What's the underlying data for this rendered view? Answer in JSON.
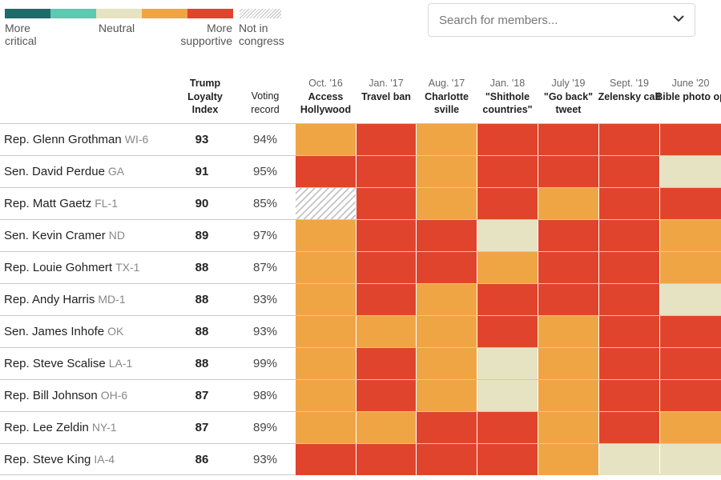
{
  "colors": {
    "more_critical": "#1d6b6b",
    "critical": "#5cc9b0",
    "neutral": "#e6e3c3",
    "supportive": "#f0a545",
    "more_supportive": "#e0442c",
    "not_in_congress": "hatch"
  },
  "legend": {
    "more_critical": "More critical",
    "neutral": "Neutral",
    "more_supportive": "More supportive",
    "not_in_congress": "Not in congress"
  },
  "search": {
    "placeholder": "Search for members...",
    "icon": "chevron-down-icon"
  },
  "columns": {
    "index": "Trump Loyalty Index",
    "voting": "Voting record",
    "events": [
      {
        "date": "Oct. '16",
        "label": "Access Hollywood"
      },
      {
        "date": "Jan. '17",
        "label": "Travel ban"
      },
      {
        "date": "Aug. '17",
        "label": "Charlotte sville"
      },
      {
        "date": "Jan. '18",
        "label": "\"Shithole countries\""
      },
      {
        "date": "July '19",
        "label": "\"Go back\" tweet"
      },
      {
        "date": "Sept. '19",
        "label": "Zelensky call"
      },
      {
        "date": "June '20",
        "label": "Bible photo op"
      }
    ]
  },
  "members": [
    {
      "name": "Rep. Glenn Grothman",
      "district": "WI-6",
      "index": "93",
      "voting": "94%",
      "ratings": [
        "supportive",
        "more_supportive",
        "supportive",
        "more_supportive",
        "more_supportive",
        "more_supportive",
        "more_supportive"
      ]
    },
    {
      "name": "Sen. David Perdue",
      "district": "GA",
      "index": "91",
      "voting": "95%",
      "ratings": [
        "more_supportive",
        "more_supportive",
        "supportive",
        "more_supportive",
        "more_supportive",
        "more_supportive",
        "neutral"
      ]
    },
    {
      "name": "Rep. Matt Gaetz",
      "district": "FL-1",
      "index": "90",
      "voting": "85%",
      "ratings": [
        "not_in_congress",
        "more_supportive",
        "supportive",
        "more_supportive",
        "supportive",
        "more_supportive",
        "more_supportive"
      ]
    },
    {
      "name": "Sen. Kevin Cramer",
      "district": "ND",
      "index": "89",
      "voting": "97%",
      "ratings": [
        "supportive",
        "more_supportive",
        "more_supportive",
        "neutral",
        "more_supportive",
        "more_supportive",
        "supportive"
      ]
    },
    {
      "name": "Rep. Louie Gohmert",
      "district": "TX-1",
      "index": "88",
      "voting": "87%",
      "ratings": [
        "supportive",
        "more_supportive",
        "more_supportive",
        "supportive",
        "more_supportive",
        "more_supportive",
        "supportive"
      ]
    },
    {
      "name": "Rep. Andy Harris",
      "district": "MD-1",
      "index": "88",
      "voting": "93%",
      "ratings": [
        "supportive",
        "more_supportive",
        "supportive",
        "more_supportive",
        "more_supportive",
        "more_supportive",
        "neutral"
      ]
    },
    {
      "name": "Sen. James Inhofe",
      "district": "OK",
      "index": "88",
      "voting": "93%",
      "ratings": [
        "supportive",
        "supportive",
        "supportive",
        "more_supportive",
        "supportive",
        "more_supportive",
        "more_supportive"
      ]
    },
    {
      "name": "Rep. Steve Scalise",
      "district": "LA-1",
      "index": "88",
      "voting": "99%",
      "ratings": [
        "supportive",
        "more_supportive",
        "supportive",
        "neutral",
        "supportive",
        "more_supportive",
        "more_supportive"
      ]
    },
    {
      "name": "Rep. Bill Johnson",
      "district": "OH-6",
      "index": "87",
      "voting": "98%",
      "ratings": [
        "supportive",
        "more_supportive",
        "supportive",
        "neutral",
        "supportive",
        "more_supportive",
        "more_supportive"
      ]
    },
    {
      "name": "Rep. Lee Zeldin",
      "district": "NY-1",
      "index": "87",
      "voting": "89%",
      "ratings": [
        "supportive",
        "supportive",
        "more_supportive",
        "more_supportive",
        "supportive",
        "more_supportive",
        "supportive"
      ]
    },
    {
      "name": "Rep. Steve King",
      "district": "IA-4",
      "index": "86",
      "voting": "93%",
      "ratings": [
        "more_supportive",
        "more_supportive",
        "more_supportive",
        "more_supportive",
        "supportive",
        "neutral",
        "neutral"
      ]
    }
  ]
}
